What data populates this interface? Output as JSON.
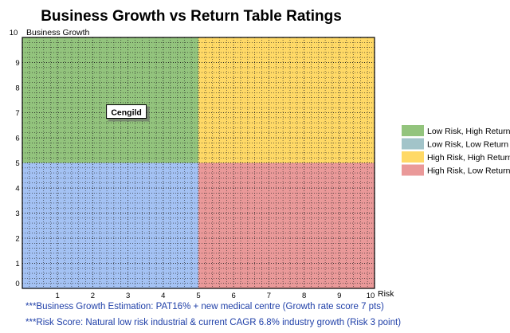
{
  "chart_data": {
    "type": "quadrant",
    "title": "Business Growth vs Return Table Ratings",
    "xlabel": "Risk",
    "ylabel": "Business Growth",
    "xlim": [
      0,
      10
    ],
    "ylim": [
      0,
      10
    ],
    "x_ticks": [
      "0",
      "1",
      "2",
      "3",
      "4",
      "5",
      "6",
      "7",
      "8",
      "9",
      "10"
    ],
    "y_ticks": [
      "0",
      "1",
      "2",
      "3",
      "4",
      "5",
      "6",
      "7",
      "8",
      "9",
      "10"
    ],
    "grid": true,
    "quadrants": [
      {
        "name": "Low Risk, High Return",
        "color": "#93c47d",
        "x": [
          0,
          5
        ],
        "y": [
          5,
          10
        ]
      },
      {
        "name": "Low Risk, Low Return",
        "color": "#a4c2f4",
        "x": [
          0,
          5
        ],
        "y": [
          0,
          5
        ]
      },
      {
        "name": "High Risk, High Return",
        "color": "#ffd966",
        "x": [
          5,
          10
        ],
        "y": [
          5,
          10
        ]
      },
      {
        "name": "High Risk, Low Return",
        "color": "#ea9999",
        "x": [
          5,
          10
        ],
        "y": [
          0,
          5
        ]
      }
    ],
    "legend": [
      {
        "label": "Low Risk, High Return",
        "color": "#93c47d"
      },
      {
        "label": "Low Risk, Low Return",
        "color": "#a2c4c9"
      },
      {
        "label": "High Risk, High Return",
        "color": "#ffd966"
      },
      {
        "label": "High Risk, Low Return",
        "color": "#ea9999"
      }
    ],
    "legend_position": "right",
    "points": [
      {
        "label": "Cengild",
        "x": 3,
        "y": 7
      }
    ]
  },
  "notes": [
    "***Business Growth Estimation: PAT16% + new medical centre (Growth rate score 7 pts)",
    "***Risk Score: Natural low risk industrial & current CAGR 6.8% industry growth (Risk 3 point)"
  ]
}
